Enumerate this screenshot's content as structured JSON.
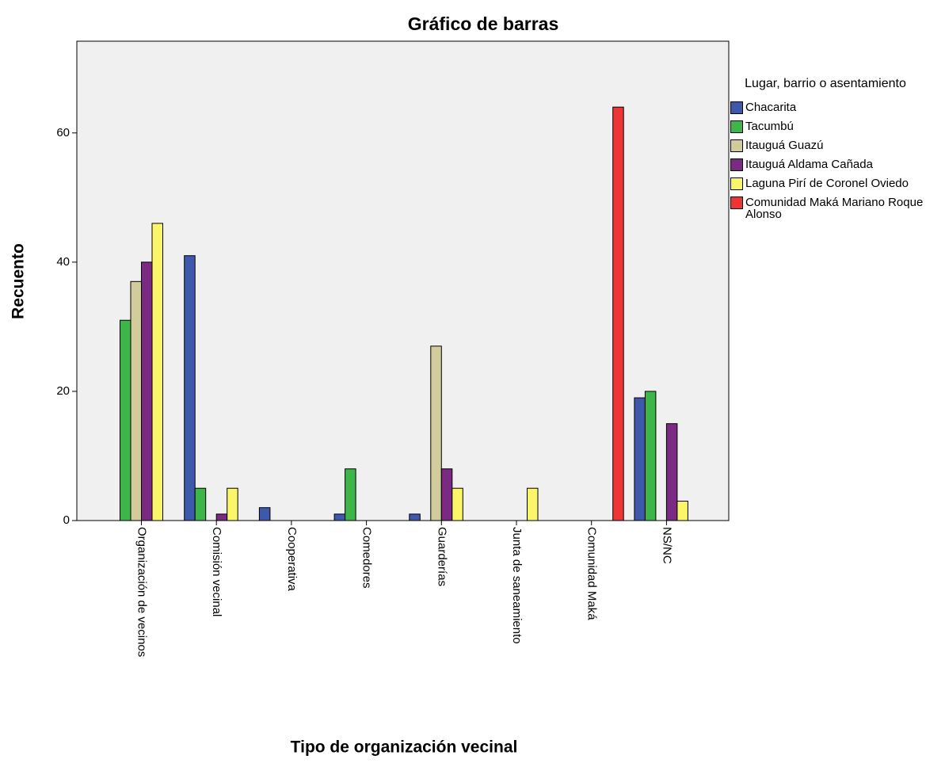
{
  "chart_data": {
    "type": "bar",
    "title": "Gráfico de barras",
    "x_label": "Tipo de organización vecinal",
    "y_label": "Recuento",
    "legend_title": "Lugar, barrio o asentamiento",
    "categories": [
      "Organización de vecinos",
      "Comisión vecinal",
      "Cooperativa",
      "Comedores",
      "Guarderías",
      "Junta de saneamiento",
      "Comunidad Maká",
      "NS/NC"
    ],
    "series": [
      {
        "name": "Chacarita",
        "color": "#3e58ac",
        "values": [
          0,
          41,
          2,
          1,
          1,
          0,
          0,
          19
        ]
      },
      {
        "name": "Tacumbú",
        "color": "#3eb549",
        "values": [
          31,
          5,
          0,
          8,
          0,
          0,
          0,
          20
        ]
      },
      {
        "name": "Itauguá Guazú",
        "color": "#d2cc9c",
        "values": [
          37,
          0,
          0,
          0,
          27,
          0,
          0,
          0
        ]
      },
      {
        "name": "Itauguá Aldama Cañada",
        "color": "#7a2a82",
        "values": [
          40,
          1,
          0,
          0,
          8,
          0,
          0,
          15
        ]
      },
      {
        "name": "Laguna Pirí de Coronel Oviedo",
        "color": "#fbf569",
        "values": [
          46,
          5,
          0,
          0,
          5,
          5,
          0,
          3
        ]
      },
      {
        "name": "Comunidad Maká Mariano Roque Alonso",
        "color": "#ee3536",
        "values": [
          0,
          0,
          0,
          0,
          0,
          0,
          64,
          0
        ]
      }
    ],
    "ylim": [
      0,
      74.2
    ],
    "yticks": [
      0,
      20,
      40,
      60
    ],
    "background": "#f0f0f0"
  }
}
